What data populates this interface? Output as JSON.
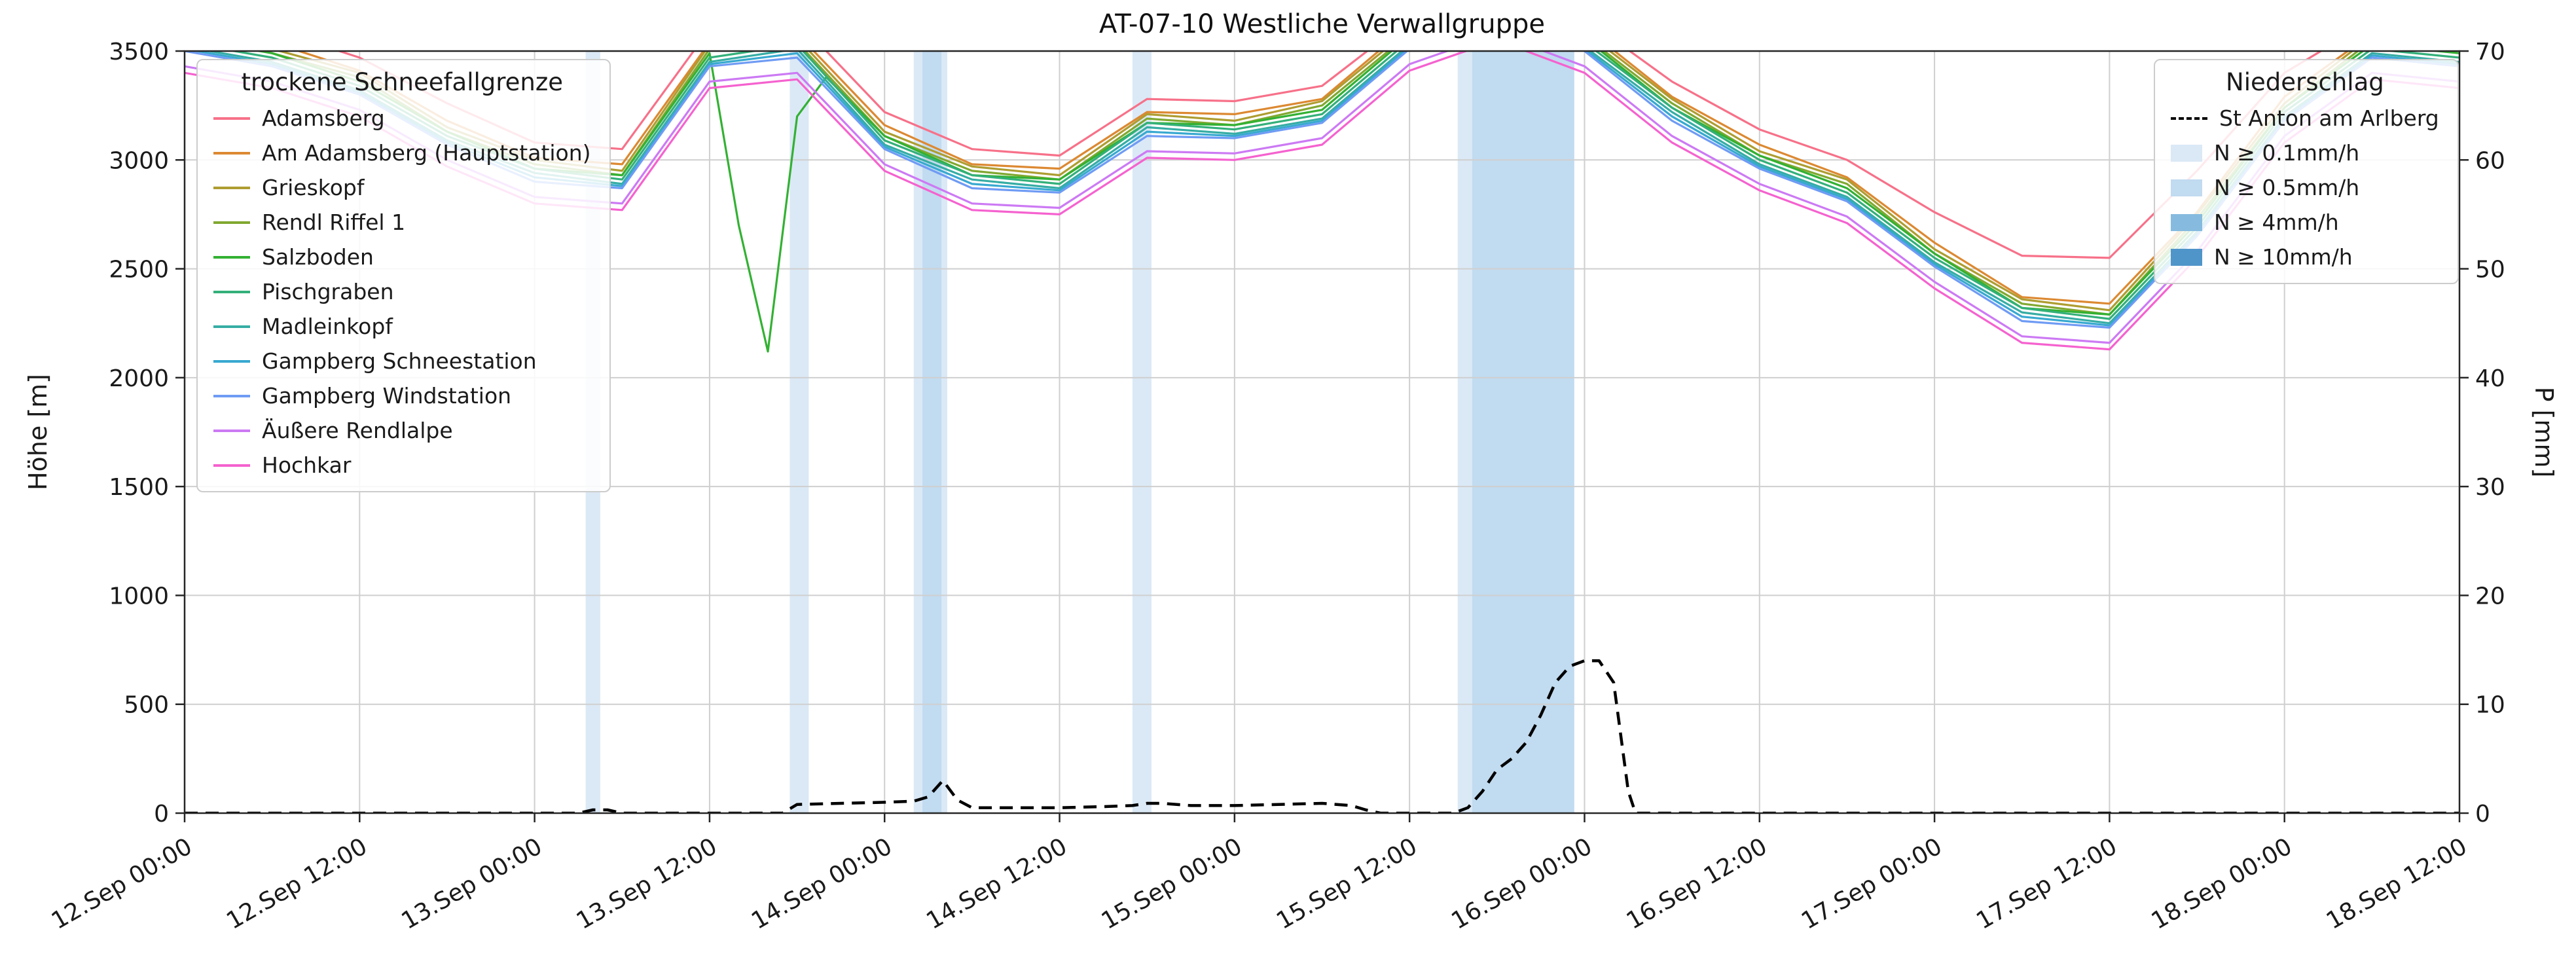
{
  "title": "AT-07-10 Westliche Verwallgruppe",
  "chart_data": {
    "type": "line",
    "title": "AT-07-10 Westliche Verwallgruppe",
    "ylabel_left": "Höhe [m]",
    "ylabel_right": "P [mm]",
    "ylim_left": [
      0,
      3500
    ],
    "ylim_right": [
      0,
      70
    ],
    "xlim_hours": [
      0,
      156
    ],
    "y_ticks_left": [
      0,
      500,
      1000,
      1500,
      2000,
      2500,
      3000,
      3500
    ],
    "y_ticks_right": [
      0,
      10,
      20,
      30,
      40,
      50,
      60,
      70
    ],
    "x_ticks": {
      "hours": [
        0,
        12,
        24,
        36,
        48,
        60,
        72,
        84,
        96,
        108,
        120,
        132,
        144,
        156
      ],
      "labels": [
        "12.Sep 00:00",
        "12.Sep 12:00",
        "13.Sep 00:00",
        "13.Sep 12:00",
        "14.Sep 00:00",
        "14.Sep 12:00",
        "15.Sep 00:00",
        "15.Sep 12:00",
        "16.Sep 00:00",
        "16.Sep 12:00",
        "17.Sep 00:00",
        "17.Sep 12:00",
        "18.Sep 00:00",
        "18.Sep 12:00"
      ]
    },
    "x_hours": [
      0,
      6,
      12,
      18,
      24,
      30,
      36,
      42,
      48,
      54,
      60,
      66,
      72,
      78,
      84,
      90,
      96,
      102,
      108,
      114,
      120,
      126,
      132,
      138,
      144,
      150,
      156
    ],
    "legend_left_title": "trockene Schneefallgrenze",
    "legend_right_title": "Niederschlag",
    "series": [
      {
        "name": "Adamsberg",
        "color": "#f77189",
        "values": [
          3650,
          3600,
          3470,
          3260,
          3080,
          3050,
          3600,
          3640,
          3220,
          3050,
          3020,
          3280,
          3270,
          3340,
          3650,
          3780,
          3650,
          3360,
          3140,
          3000,
          2760,
          2560,
          2550,
          2950,
          3400,
          3640,
          3600
        ]
      },
      {
        "name": "Am Adamsberg (Hauptstation)",
        "color": "#dc8932",
        "values": [
          3610,
          3540,
          3410,
          3180,
          3010,
          2980,
          3540,
          3580,
          3160,
          2980,
          2960,
          3220,
          3210,
          3280,
          3620,
          3760,
          3610,
          3290,
          3070,
          2920,
          2620,
          2370,
          2340,
          2760,
          3290,
          3580,
          3540
        ]
      },
      {
        "name": "Grieskopf",
        "color": "#ae9d31",
        "values": [
          3590,
          3510,
          3400,
          3150,
          3000,
          2950,
          3530,
          3560,
          3130,
          2970,
          2930,
          3210,
          3180,
          3270,
          3600,
          3740,
          3590,
          3280,
          3040,
          2910,
          2590,
          2360,
          2310,
          2750,
          3260,
          3570,
          3510
        ]
      },
      {
        "name": "Rendl Riffel 1",
        "color": "#81a831",
        "values": [
          3570,
          3490,
          3380,
          3130,
          2980,
          2930,
          3510,
          3540,
          3110,
          2950,
          2910,
          3190,
          3160,
          3250,
          3580,
          3720,
          3570,
          3260,
          3020,
          2890,
          2570,
          2340,
          2290,
          2730,
          3240,
          3550,
          3490
        ]
      },
      {
        "name": "Salzboden",
        "color": "#33b133",
        "x": [
          0,
          6,
          12,
          18,
          24,
          30,
          36,
          38,
          40,
          42,
          44,
          48,
          54,
          60,
          66,
          72,
          78,
          84,
          90,
          96,
          102,
          108,
          114,
          120,
          126,
          132,
          138,
          144,
          150,
          156
        ],
        "values": [
          3560,
          3490,
          3360,
          3130,
          2960,
          2930,
          3490,
          2700,
          2120,
          3200,
          3380,
          3110,
          2930,
          2910,
          3170,
          3160,
          3230,
          3570,
          3710,
          3560,
          3240,
          3020,
          2870,
          2570,
          2320,
          2290,
          2710,
          3240,
          3530,
          3490
        ]
      },
      {
        "name": "Pischgraben",
        "color": "#33b07a",
        "values": [
          3540,
          3470,
          3340,
          3110,
          2960,
          2910,
          3470,
          3530,
          3090,
          2930,
          2890,
          3170,
          3140,
          3210,
          3550,
          3700,
          3540,
          3240,
          3000,
          2850,
          2550,
          2320,
          2270,
          2690,
          3220,
          3510,
          3470
        ]
      },
      {
        "name": "Madleinkopf",
        "color": "#36ada4",
        "values": [
          3520,
          3450,
          3320,
          3090,
          2940,
          2890,
          3450,
          3510,
          3070,
          2910,
          2870,
          3150,
          3120,
          3190,
          3530,
          3680,
          3520,
          3220,
          2980,
          2830,
          2530,
          2300,
          2250,
          2670,
          3200,
          3490,
          3450
        ]
      },
      {
        "name": "Gampberg Schneestation",
        "color": "#38a9d0",
        "values": [
          3510,
          3440,
          3310,
          3080,
          2920,
          2880,
          3440,
          3490,
          3060,
          2890,
          2860,
          3130,
          3110,
          3180,
          3520,
          3670,
          3510,
          3200,
          2970,
          2820,
          2520,
          2280,
          2240,
          2660,
          3190,
          3480,
          3440
        ]
      },
      {
        "name": "Gampberg Windstation",
        "color": "#6f9bf4",
        "values": [
          3500,
          3430,
          3300,
          3070,
          2900,
          2870,
          3430,
          3470,
          3050,
          2870,
          2850,
          3110,
          3100,
          3170,
          3510,
          3650,
          3500,
          3180,
          2960,
          2810,
          2510,
          2260,
          2230,
          2650,
          3180,
          3470,
          3430
        ]
      },
      {
        "name": "Äußere Rendlalpe",
        "color": "#cc7af4",
        "values": [
          3430,
          3360,
          3230,
          3000,
          2830,
          2800,
          3360,
          3400,
          2980,
          2800,
          2780,
          3040,
          3030,
          3100,
          3440,
          3580,
          3430,
          3110,
          2890,
          2740,
          2440,
          2190,
          2160,
          2580,
          3110,
          3400,
          3360
        ]
      },
      {
        "name": "Hochkar",
        "color": "#f562cf",
        "values": [
          3400,
          3330,
          3200,
          2970,
          2800,
          2770,
          3330,
          3370,
          2950,
          2770,
          2750,
          3010,
          3000,
          3070,
          3410,
          3550,
          3400,
          3080,
          2860,
          2710,
          2410,
          2160,
          2130,
          2550,
          3080,
          3370,
          3330
        ]
      }
    ],
    "precipitation_line": {
      "name": "St Anton am Arlberg",
      "color": "#000000",
      "style": "dashed",
      "axis": "right",
      "x": [
        0,
        27,
        28,
        29,
        30,
        41,
        42,
        45,
        48,
        50,
        51,
        52,
        53,
        54,
        57,
        60,
        63,
        65,
        66,
        67,
        69,
        72,
        75,
        78,
        80,
        81,
        82,
        87,
        88,
        89,
        90,
        91,
        92,
        93,
        94,
        95,
        96,
        97,
        98,
        99,
        99.5,
        156
      ],
      "y": [
        0,
        0,
        0.3,
        0.3,
        0,
        0,
        0.8,
        0.9,
        1.0,
        1.1,
        1.5,
        3.0,
        1.2,
        0.5,
        0.5,
        0.5,
        0.6,
        0.7,
        0.9,
        0.9,
        0.7,
        0.7,
        0.8,
        0.9,
        0.7,
        0.3,
        0,
        0,
        0.5,
        2,
        4,
        5,
        6.5,
        9,
        12,
        13.5,
        14,
        14,
        12,
        2,
        0,
        0
      ]
    },
    "precip_bands": [
      {
        "start": 27.5,
        "end": 28.5,
        "level": 0
      },
      {
        "start": 41.5,
        "end": 42.8,
        "level": 0
      },
      {
        "start": 50.0,
        "end": 52.3,
        "level": 0
      },
      {
        "start": 50.6,
        "end": 51.9,
        "level": 1
      },
      {
        "start": 65.0,
        "end": 66.3,
        "level": 0
      },
      {
        "start": 87.3,
        "end": 88.3,
        "level": 0
      },
      {
        "start": 88.3,
        "end": 95.3,
        "level": 1
      }
    ],
    "band_levels": [
      {
        "label": "N ≥ 0.1mm/h",
        "color": "#dbe9f6"
      },
      {
        "label": "N ≥ 0.5mm/h",
        "color": "#c1dbf0"
      },
      {
        "label": "N ≥ 4mm/h",
        "color": "#86bbdf"
      },
      {
        "label": "N ≥ 10mm/h",
        "color": "#4f95c9"
      }
    ]
  }
}
